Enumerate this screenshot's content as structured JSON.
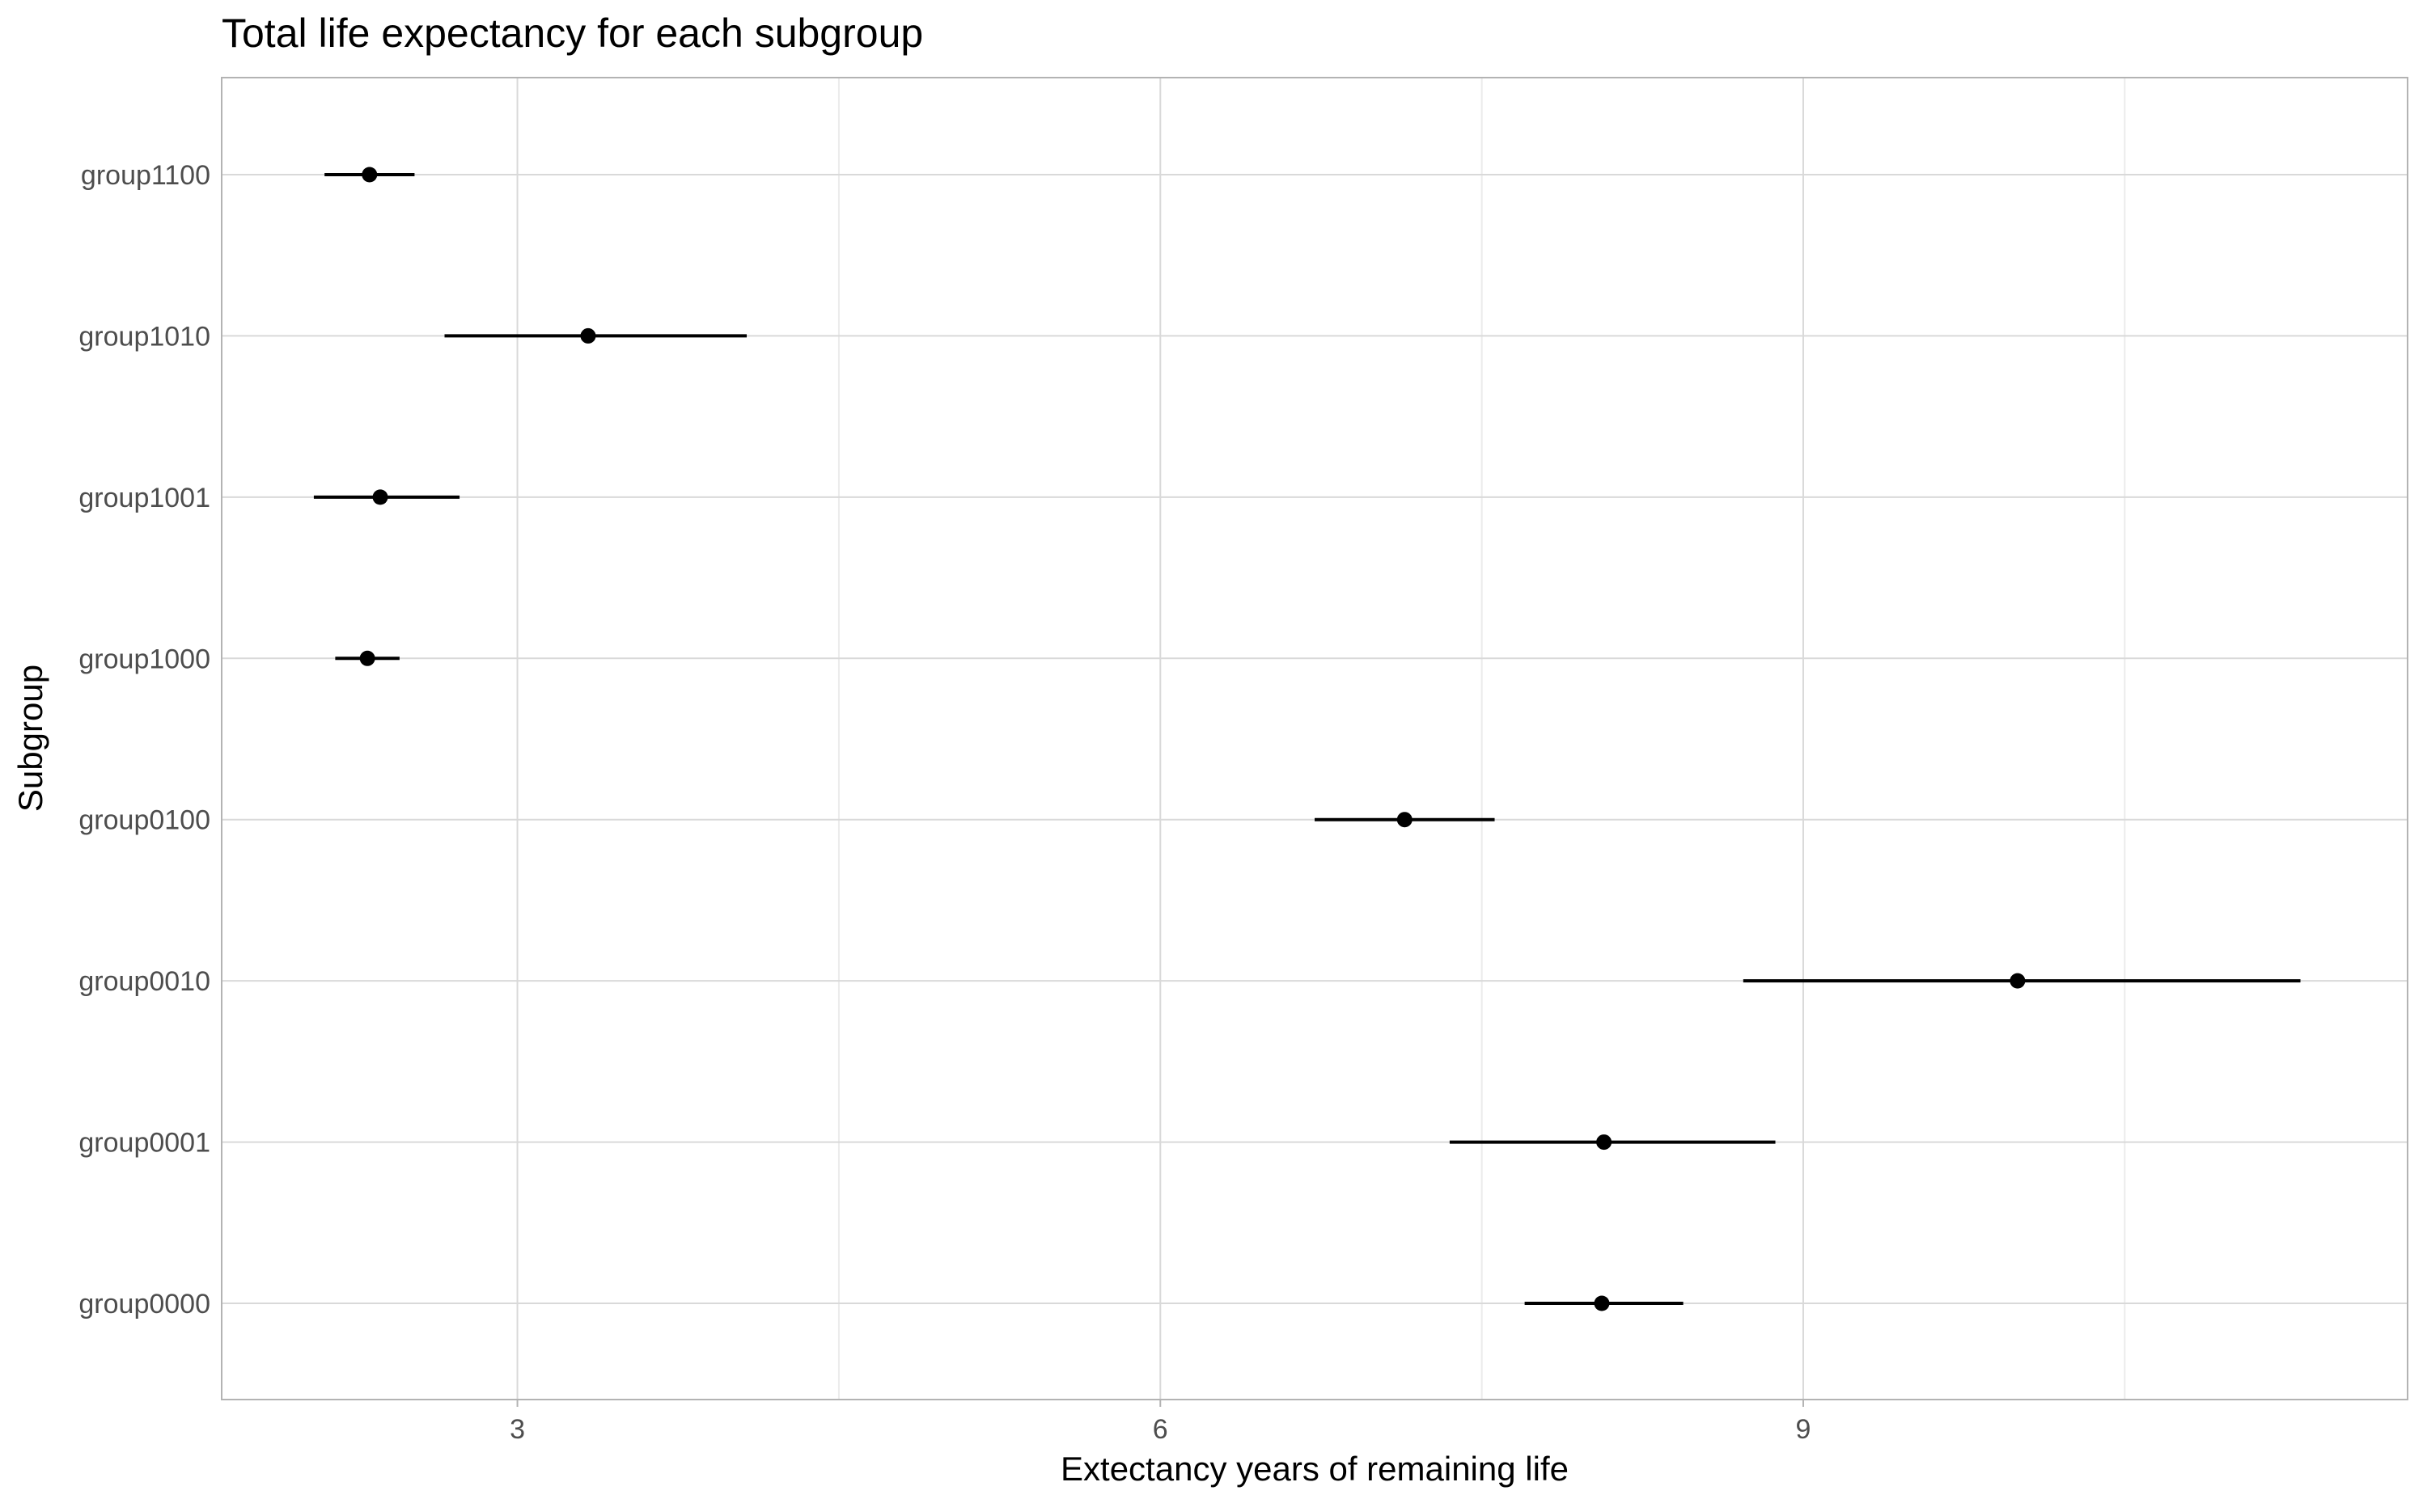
{
  "chart_data": {
    "type": "scatter",
    "variant": "point-range (dot with horizontal interval)",
    "title": "Total life expectancy for each subgroup",
    "xlabel": "Extectancy years of remaining life",
    "ylabel": "Subgroup",
    "xlim": [
      1.62,
      11.82
    ],
    "x_ticks": [
      3,
      6,
      9
    ],
    "x_minor_gridlines": [
      4.5,
      7.5,
      10.5
    ],
    "grid": true,
    "legend": "none",
    "categories": [
      "group0000",
      "group0001",
      "group0010",
      "group0100",
      "group1000",
      "group1001",
      "group1010",
      "group1100"
    ],
    "points": [
      {
        "group": "group0000",
        "estimate": 8.06,
        "lower": 7.7,
        "upper": 8.44
      },
      {
        "group": "group0001",
        "estimate": 8.07,
        "lower": 7.35,
        "upper": 8.87
      },
      {
        "group": "group0010",
        "estimate": 10.0,
        "lower": 8.72,
        "upper": 11.32
      },
      {
        "group": "group0100",
        "estimate": 7.14,
        "lower": 6.72,
        "upper": 7.56
      },
      {
        "group": "group1000",
        "estimate": 2.3,
        "lower": 2.15,
        "upper": 2.45
      },
      {
        "group": "group1001",
        "estimate": 2.36,
        "lower": 2.05,
        "upper": 2.73
      },
      {
        "group": "group1010",
        "estimate": 3.33,
        "lower": 2.66,
        "upper": 4.07
      },
      {
        "group": "group1100",
        "estimate": 2.31,
        "lower": 2.1,
        "upper": 2.52
      }
    ],
    "colors": {
      "point": "#000000",
      "interval": "#000000",
      "panel_border": "#b3b3b3",
      "grid_major": "#d9d9d9",
      "grid_minor": "#ebebeb",
      "tick_label": "#4d4d4d",
      "title": "#000000"
    }
  }
}
